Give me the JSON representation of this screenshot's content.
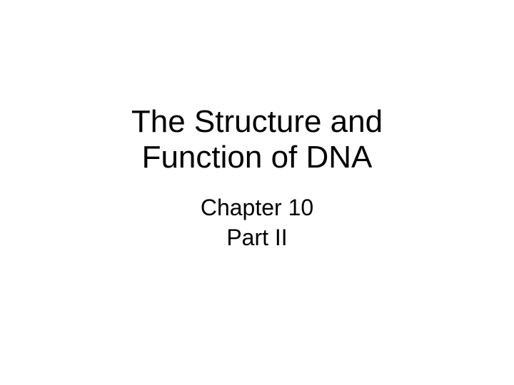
{
  "slide": {
    "title_line1": "The Structure and",
    "title_line2": "Function of DNA",
    "subtitle_line1": "Chapter 10",
    "subtitle_line2": "Part II",
    "title_fontsize": 44,
    "subtitle_fontsize": 32,
    "title_color": "#000000",
    "subtitle_color": "#000000",
    "background_color": "#ffffff",
    "font_family": "Arial"
  }
}
